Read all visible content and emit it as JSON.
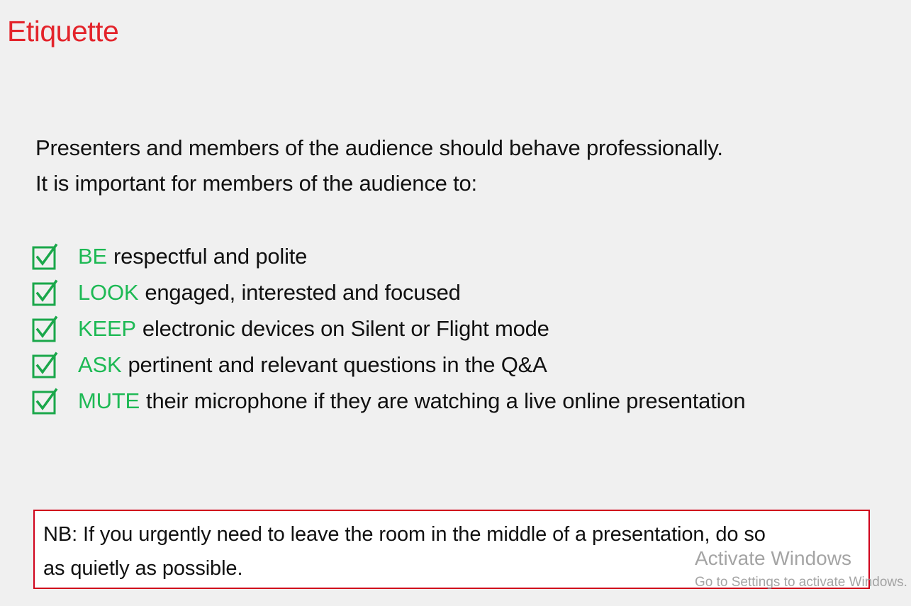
{
  "colors": {
    "background": "#f0f0f0",
    "title": "#e3242b",
    "keyword": "#1db954",
    "checkbox": "#1aa74a",
    "nb_border": "#d0021b",
    "watermark": "#9b9b9b"
  },
  "slide": {
    "title": "Etiquette",
    "intro": [
      "Presenters and members of the audience should behave professionally.",
      "It is important for members of the audience to:"
    ],
    "checklist": [
      {
        "keyword": "BE",
        "text": "respectful and polite",
        "icon": "checked-box-icon"
      },
      {
        "keyword": "LOOK",
        "text": "engaged, interested and focused",
        "icon": "checked-box-icon"
      },
      {
        "keyword": "KEEP",
        "text": "electronic devices on Silent or Flight mode",
        "icon": "checked-box-icon"
      },
      {
        "keyword": "ASK",
        "text": "pertinent and relevant questions in the Q&A",
        "icon": "checked-box-icon"
      },
      {
        "keyword": "MUTE",
        "text": "their microphone if they are watching a live online presentation",
        "icon": "checked-box-icon"
      }
    ],
    "note": {
      "line1": "NB: If you urgently need to leave the room in the middle of a presentation, do so",
      "line2": "as quietly as possible."
    }
  },
  "watermark": {
    "title": "Activate Windows",
    "subtitle": "Go to Settings to activate Windows."
  }
}
